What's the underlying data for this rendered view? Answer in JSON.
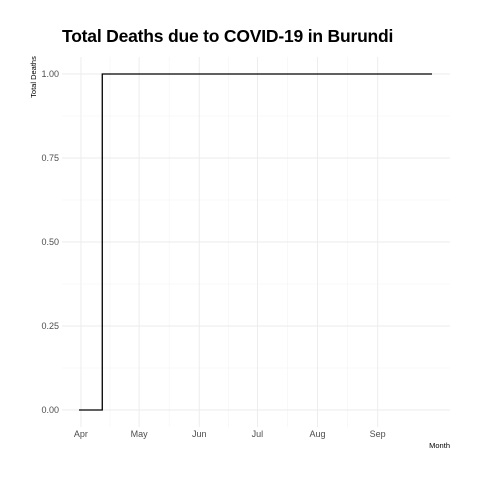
{
  "chart_data": {
    "type": "line",
    "title": "Total Deaths due to COVID-19 in Burundi",
    "xlabel": "Month",
    "ylabel": "Total Deaths",
    "x_ticks": [
      "Apr",
      "May",
      "Jun",
      "Jul",
      "Aug",
      "Sep"
    ],
    "y_ticks": [
      "0.00",
      "0.25",
      "0.50",
      "0.75",
      "1.00"
    ],
    "ylim": [
      0,
      1
    ],
    "xlim": [
      "2020-03-31",
      "2020-09-29"
    ],
    "grid": true,
    "step": true,
    "series": [
      {
        "color": "#000000",
        "points": [
          {
            "x": "2020-03-31",
            "y": 0
          },
          {
            "x": "2020-04-12",
            "y": 1
          },
          {
            "x": "2020-09-29",
            "y": 1
          }
        ]
      }
    ]
  }
}
